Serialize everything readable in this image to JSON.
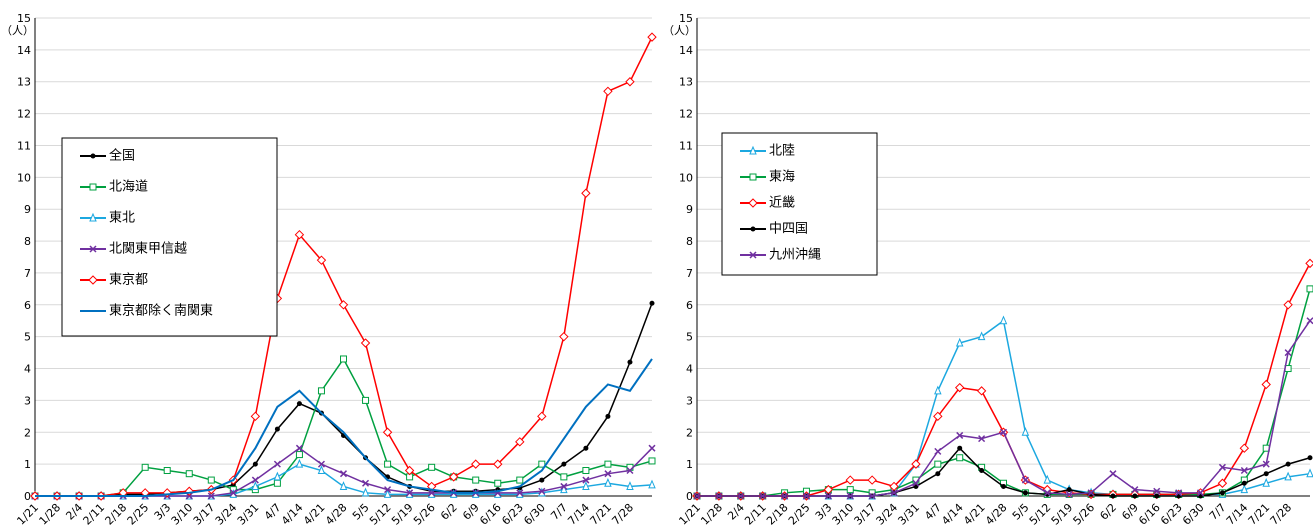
{
  "chart_data": [
    {
      "type": "line",
      "unit": "（人）",
      "categories": [
        "1/21",
        "1/28",
        "2/4",
        "2/11",
        "2/18",
        "2/25",
        "3/3",
        "3/10",
        "3/17",
        "3/24",
        "3/31",
        "4/7",
        "4/14",
        "4/21",
        "4/28",
        "5/5",
        "5/12",
        "5/19",
        "5/26",
        "6/2",
        "6/9",
        "6/16",
        "6/23",
        "6/30",
        "7/7",
        "7/14",
        "7/21",
        "7/28",
        null
      ],
      "ylim": [
        0,
        15
      ],
      "yticks": [
        0,
        1,
        2,
        3,
        4,
        5,
        6,
        7,
        8,
        9,
        10,
        11,
        12,
        13,
        14,
        15
      ],
      "grid": true,
      "legend": "left",
      "series": [
        {
          "name": "全国",
          "color": "#000000",
          "marker": "circle",
          "values": [
            0,
            0,
            0,
            0,
            0.05,
            0.05,
            0.1,
            0.15,
            0.2,
            0.35,
            1.0,
            2.1,
            2.9,
            2.6,
            1.9,
            1.2,
            0.6,
            0.3,
            0.15,
            0.15,
            0.15,
            0.2,
            0.25,
            0.5,
            1.0,
            1.5,
            2.5,
            4.2,
            6.05
          ]
        },
        {
          "name": "北海道",
          "color": "#00a040",
          "marker": "square",
          "values": [
            0,
            0,
            0,
            0,
            0.1,
            0.9,
            0.8,
            0.7,
            0.5,
            0.2,
            0.2,
            0.4,
            1.3,
            3.3,
            4.3,
            3.0,
            1.0,
            0.6,
            0.9,
            0.6,
            0.5,
            0.4,
            0.5,
            1.0,
            0.6,
            0.8,
            1.0,
            0.9,
            1.1
          ]
        },
        {
          "name": "東北",
          "color": "#1ca8e0",
          "marker": "triangle",
          "values": [
            0,
            0,
            0,
            0,
            0,
            0,
            0,
            0,
            0,
            0.05,
            0.3,
            0.6,
            1.0,
            0.8,
            0.3,
            0.1,
            0.05,
            0.05,
            0.05,
            0.05,
            0.05,
            0.05,
            0.05,
            0.1,
            0.2,
            0.3,
            0.4,
            0.3,
            0.35
          ]
        },
        {
          "name": "北関東甲信越",
          "color": "#7030a0",
          "marker": "x",
          "values": [
            0,
            0,
            0,
            0,
            0,
            0,
            0,
            0,
            0,
            0.1,
            0.5,
            1.0,
            1.5,
            1.0,
            0.7,
            0.4,
            0.2,
            0.1,
            0.1,
            0.1,
            0.1,
            0.1,
            0.1,
            0.15,
            0.3,
            0.5,
            0.7,
            0.8,
            1.5
          ]
        },
        {
          "name": "東京都",
          "color": "#ff0000",
          "marker": "diamond",
          "values": [
            0,
            0,
            0,
            0,
            0.1,
            0.1,
            0.1,
            0.15,
            0.2,
            0.5,
            2.5,
            6.2,
            8.2,
            7.4,
            6.0,
            4.8,
            2.0,
            0.8,
            0.3,
            0.6,
            1.0,
            1.0,
            1.7,
            2.5,
            5.0,
            9.5,
            12.7,
            13.0,
            14.4
          ]
        },
        {
          "name": "東京都除く南関東",
          "color": "#0070c0",
          "marker": "none",
          "values": [
            0,
            0,
            0,
            0,
            0,
            0,
            0.05,
            0.1,
            0.2,
            0.5,
            1.5,
            2.8,
            3.3,
            2.6,
            2.0,
            1.2,
            0.5,
            0.3,
            0.2,
            0.1,
            0.1,
            0.15,
            0.3,
            0.8,
            1.8,
            2.8,
            3.5,
            3.3,
            4.3
          ]
        }
      ]
    },
    {
      "type": "line",
      "unit": "（人）",
      "categories": [
        "1/21",
        "1/28",
        "2/4",
        "2/11",
        "2/18",
        "2/25",
        "3/3",
        "3/10",
        "3/17",
        "3/24",
        "3/31",
        "4/7",
        "4/14",
        "4/21",
        "4/28",
        "5/5",
        "5/12",
        "5/19",
        "5/26",
        "6/2",
        "6/9",
        "6/16",
        "6/23",
        "6/30",
        "7/7",
        "7/14",
        "7/21",
        "7/28",
        null
      ],
      "ylim": [
        0,
        15
      ],
      "yticks": [
        0,
        1,
        2,
        3,
        4,
        5,
        6,
        7,
        8,
        9,
        10,
        11,
        12,
        13,
        14,
        15
      ],
      "grid": true,
      "legend": "left",
      "series": [
        {
          "name": "北陸",
          "color": "#1ca8e0",
          "marker": "triangle",
          "values": [
            0,
            0,
            0,
            0,
            0,
            0,
            0,
            0,
            0,
            0.1,
            1.0,
            3.3,
            4.8,
            5.0,
            5.5,
            2.0,
            0.5,
            0.2,
            0.1,
            0.05,
            0.05,
            0.05,
            0.05,
            0.05,
            0.05,
            0.2,
            0.4,
            0.6,
            0.7
          ]
        },
        {
          "name": "東海",
          "color": "#00a040",
          "marker": "square",
          "values": [
            0,
            0,
            0,
            0,
            0.1,
            0.15,
            0.2,
            0.2,
            0.1,
            0.2,
            0.5,
            1.0,
            1.2,
            0.9,
            0.4,
            0.1,
            0.05,
            0.05,
            0.05,
            0.05,
            0.05,
            0.05,
            0.05,
            0.05,
            0.1,
            0.5,
            1.5,
            4.0,
            6.5
          ]
        },
        {
          "name": "近畿",
          "color": "#ff0000",
          "marker": "diamond",
          "values": [
            0,
            0,
            0,
            0,
            0,
            0,
            0.2,
            0.5,
            0.5,
            0.3,
            1.0,
            2.5,
            3.4,
            3.3,
            2.0,
            0.5,
            0.2,
            0.1,
            0.05,
            0.05,
            0.05,
            0.05,
            0.05,
            0.1,
            0.4,
            1.5,
            3.5,
            6.0,
            7.3
          ]
        },
        {
          "name": "中四国",
          "color": "#000000",
          "marker": "circle",
          "values": [
            0,
            0,
            0,
            0,
            0,
            0,
            0,
            0,
            0,
            0.1,
            0.3,
            0.7,
            1.5,
            0.8,
            0.3,
            0.1,
            0.05,
            0.2,
            0.05,
            0,
            0,
            0,
            0,
            0,
            0.1,
            0.4,
            0.7,
            1.0,
            1.2
          ]
        },
        {
          "name": "九州沖縄",
          "color": "#7030a0",
          "marker": "x",
          "values": [
            0,
            0,
            0,
            0,
            0,
            0,
            0,
            0,
            0,
            0.1,
            0.4,
            1.4,
            1.9,
            1.8,
            2.0,
            0.5,
            0.1,
            0.05,
            0.1,
            0.7,
            0.2,
            0.15,
            0.1,
            0.1,
            0.9,
            0.8,
            1.0,
            4.5,
            5.5
          ]
        }
      ]
    }
  ]
}
